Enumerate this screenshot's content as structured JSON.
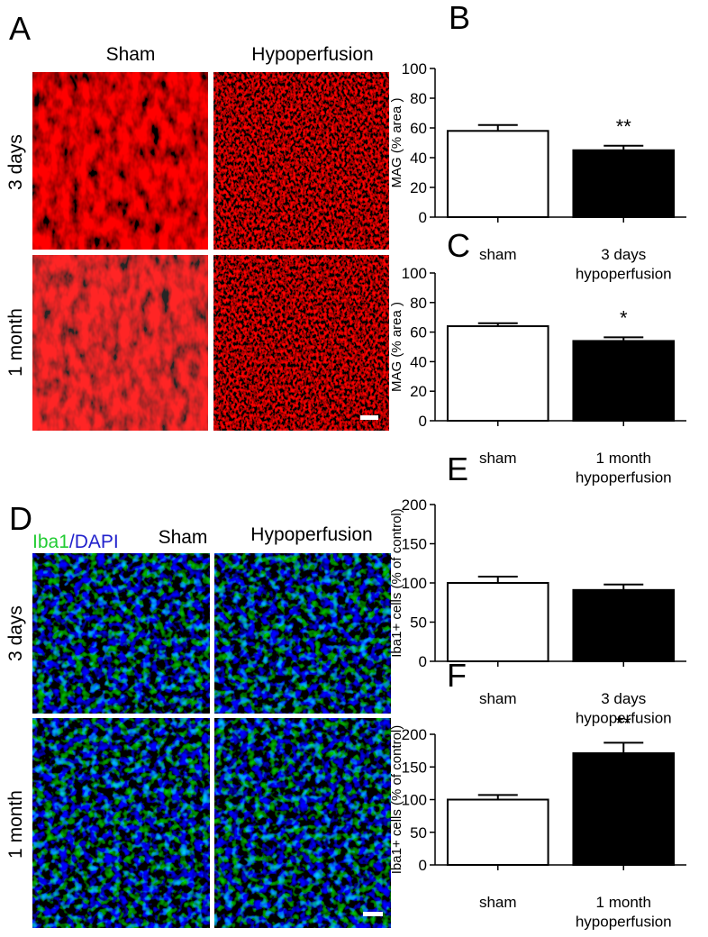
{
  "figure": {
    "panel_a": {
      "label": "A",
      "columns": [
        "Sham",
        "Hypoperfusion"
      ],
      "rows": [
        "3 days",
        "1 month"
      ]
    },
    "panel_d": {
      "label": "D",
      "stain": [
        "Iba1",
        "/DAPI"
      ],
      "columns": [
        "Sham",
        "Hypoperfusion"
      ],
      "rows": [
        "3 days",
        "1 month"
      ]
    }
  },
  "chart_data": [
    {
      "type": "bar",
      "panel_label": "B",
      "y_label": "MAG (% area )",
      "categories": [
        "sham",
        "3 days\nhypoperfusion"
      ],
      "values": [
        58,
        45
      ],
      "errors": [
        4,
        3
      ],
      "colors": [
        "#ffffff",
        "#000000"
      ],
      "annotation": "**",
      "ylim": [
        0,
        100
      ],
      "yticks": [
        0,
        20,
        40,
        60,
        80,
        100
      ]
    },
    {
      "type": "bar",
      "panel_label": "C",
      "y_label": "MAG (% area )",
      "categories": [
        "sham",
        "1 month\nhypoperfusion"
      ],
      "values": [
        64,
        54
      ],
      "errors": [
        2,
        2.5
      ],
      "colors": [
        "#ffffff",
        "#000000"
      ],
      "annotation": "*",
      "ylim": [
        0,
        100
      ],
      "yticks": [
        0,
        20,
        40,
        60,
        80,
        100
      ]
    },
    {
      "type": "bar",
      "panel_label": "E",
      "y_label": "Iba1+ cells (% of control)",
      "categories": [
        "sham",
        "3 days\nhypoperfusion"
      ],
      "values": [
        100,
        91
      ],
      "errors": [
        8,
        7
      ],
      "colors": [
        "#ffffff",
        "#000000"
      ],
      "ylim": [
        0,
        200
      ],
      "yticks": [
        0,
        50,
        100,
        150,
        200
      ]
    },
    {
      "type": "bar",
      "panel_label": "F",
      "y_label": "Iba1+ cells (% of control)",
      "categories": [
        "sham",
        "1 month\nhypoperfusion"
      ],
      "values": [
        100,
        171
      ],
      "errors": [
        7,
        16
      ],
      "colors": [
        "#ffffff",
        "#000000"
      ],
      "annotation": "**",
      "ylim": [
        0,
        200
      ],
      "yticks": [
        0,
        50,
        100,
        150,
        200
      ]
    }
  ]
}
